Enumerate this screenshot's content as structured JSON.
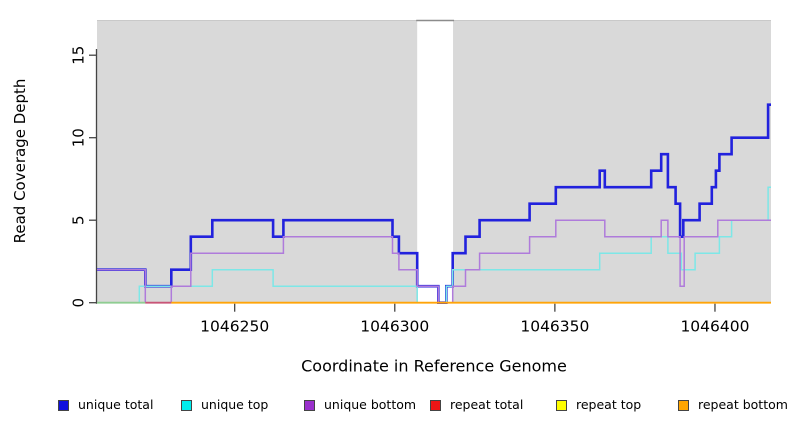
{
  "chart_data": {
    "type": "line",
    "subtype": "step-coverage",
    "title": "",
    "xlabel": "Coordinate in Reference Genome",
    "ylabel": "Read Coverage Depth",
    "xlim": [
      1046207,
      1046417.5
    ],
    "ylim": [
      0,
      17.1
    ],
    "grid": false,
    "panel_background": "#D9D9D9",
    "gap_region": {
      "x0": 1046307,
      "x1": 1046318.2,
      "color": "#FFFFFF"
    },
    "x_ticks": [
      {
        "value": 1046250,
        "label": "1046250"
      },
      {
        "value": 1046300,
        "label": "1046300"
      },
      {
        "value": 1046350,
        "label": "1046350"
      },
      {
        "value": 1046400,
        "label": "1046400"
      }
    ],
    "y_ticks": [
      {
        "value": 0,
        "label": "0"
      },
      {
        "value": 5,
        "label": "5"
      },
      {
        "value": 10,
        "label": "10"
      },
      {
        "value": 15,
        "label": "15"
      }
    ],
    "series": [
      {
        "name": "unique total",
        "color": "#2222DD",
        "width": 2.6,
        "steps": [
          [
            1046207,
            2
          ],
          [
            1046222.1,
            1
          ],
          [
            1046230.2,
            2
          ],
          [
            1046236.3,
            4
          ],
          [
            1046243,
            5
          ],
          [
            1046262,
            4
          ],
          [
            1046265.2,
            5
          ],
          [
            1046299.3,
            4
          ],
          [
            1046301.3,
            3
          ],
          [
            1046307,
            1
          ],
          [
            1046313.6,
            0
          ],
          [
            1046316.1,
            1
          ],
          [
            1046318.1,
            3
          ],
          [
            1046322.1,
            4
          ],
          [
            1046326.5,
            5
          ],
          [
            1046342.1,
            6
          ],
          [
            1046350.3,
            7
          ],
          [
            1046364,
            8
          ],
          [
            1046365.6,
            7
          ],
          [
            1046380.1,
            8
          ],
          [
            1046383.2,
            9
          ],
          [
            1046385.3,
            7
          ],
          [
            1046387.7,
            6
          ],
          [
            1046389.1,
            4
          ],
          [
            1046390.1,
            5
          ],
          [
            1046395.2,
            6
          ],
          [
            1046399,
            7
          ],
          [
            1046400.3,
            8
          ],
          [
            1046401.4,
            9
          ],
          [
            1046405.2,
            10
          ],
          [
            1046416.6,
            12
          ]
        ]
      },
      {
        "name": "unique top",
        "color": "#7DE7E7",
        "width": 1.5,
        "steps": [
          [
            1046207,
            0
          ],
          [
            1046220.2,
            1
          ],
          [
            1046243,
            2
          ],
          [
            1046262,
            1
          ],
          [
            1046307,
            0
          ],
          [
            1046316.1,
            1
          ],
          [
            1046318.1,
            2
          ],
          [
            1046364,
            3
          ],
          [
            1046380.1,
            4
          ],
          [
            1046385.3,
            3
          ],
          [
            1046389.5,
            2
          ],
          [
            1046393.8,
            3
          ],
          [
            1046401.4,
            4
          ],
          [
            1046405.2,
            5
          ],
          [
            1046416.6,
            7
          ]
        ]
      },
      {
        "name": "unique bottom",
        "color": "#AF7BDB",
        "width": 1.5,
        "steps": [
          [
            1046207,
            2
          ],
          [
            1046222.1,
            0
          ],
          [
            1046230.2,
            1
          ],
          [
            1046236.3,
            3
          ],
          [
            1046265.2,
            4
          ],
          [
            1046299.3,
            3
          ],
          [
            1046301.3,
            2
          ],
          [
            1046307,
            1
          ],
          [
            1046313.6,
            0
          ],
          [
            1046318.1,
            1
          ],
          [
            1046322.1,
            2
          ],
          [
            1046326.5,
            3
          ],
          [
            1046342.1,
            4
          ],
          [
            1046350.3,
            5
          ],
          [
            1046365.6,
            4
          ],
          [
            1046383.2,
            5
          ],
          [
            1046385.3,
            4
          ],
          [
            1046389.1,
            1
          ],
          [
            1046390.4,
            4
          ],
          [
            1046400.9,
            5
          ]
        ]
      }
    ],
    "baseline_segments": [
      {
        "name": "repeat-top-visible",
        "x0": 1046207,
        "x1": 1046222.1,
        "value": 0,
        "color": "#8FCD92",
        "width": 1.8
      },
      {
        "name": "repeat-total-visible",
        "x0": 1046222.1,
        "x1": 1046230.2,
        "value": 0,
        "color": "#C85577",
        "width": 1.8
      },
      {
        "name": "repeat-bottom-visible",
        "x0": 1046230.2,
        "x1": 1046417.5,
        "value": 0,
        "color": "#FFA408",
        "width": 1.8
      }
    ],
    "legend": [
      {
        "label": "unique total",
        "color": "#1111DD"
      },
      {
        "label": "unique top",
        "color": "#00EEEE"
      },
      {
        "label": "unique bottom",
        "color": "#9A30CC"
      },
      {
        "label": "repeat total",
        "color": "#EE1515"
      },
      {
        "label": "repeat top",
        "color": "#FFFF00"
      },
      {
        "label": "repeat bottom",
        "color": "#FFA500"
      }
    ],
    "legend_position": "bottom"
  }
}
